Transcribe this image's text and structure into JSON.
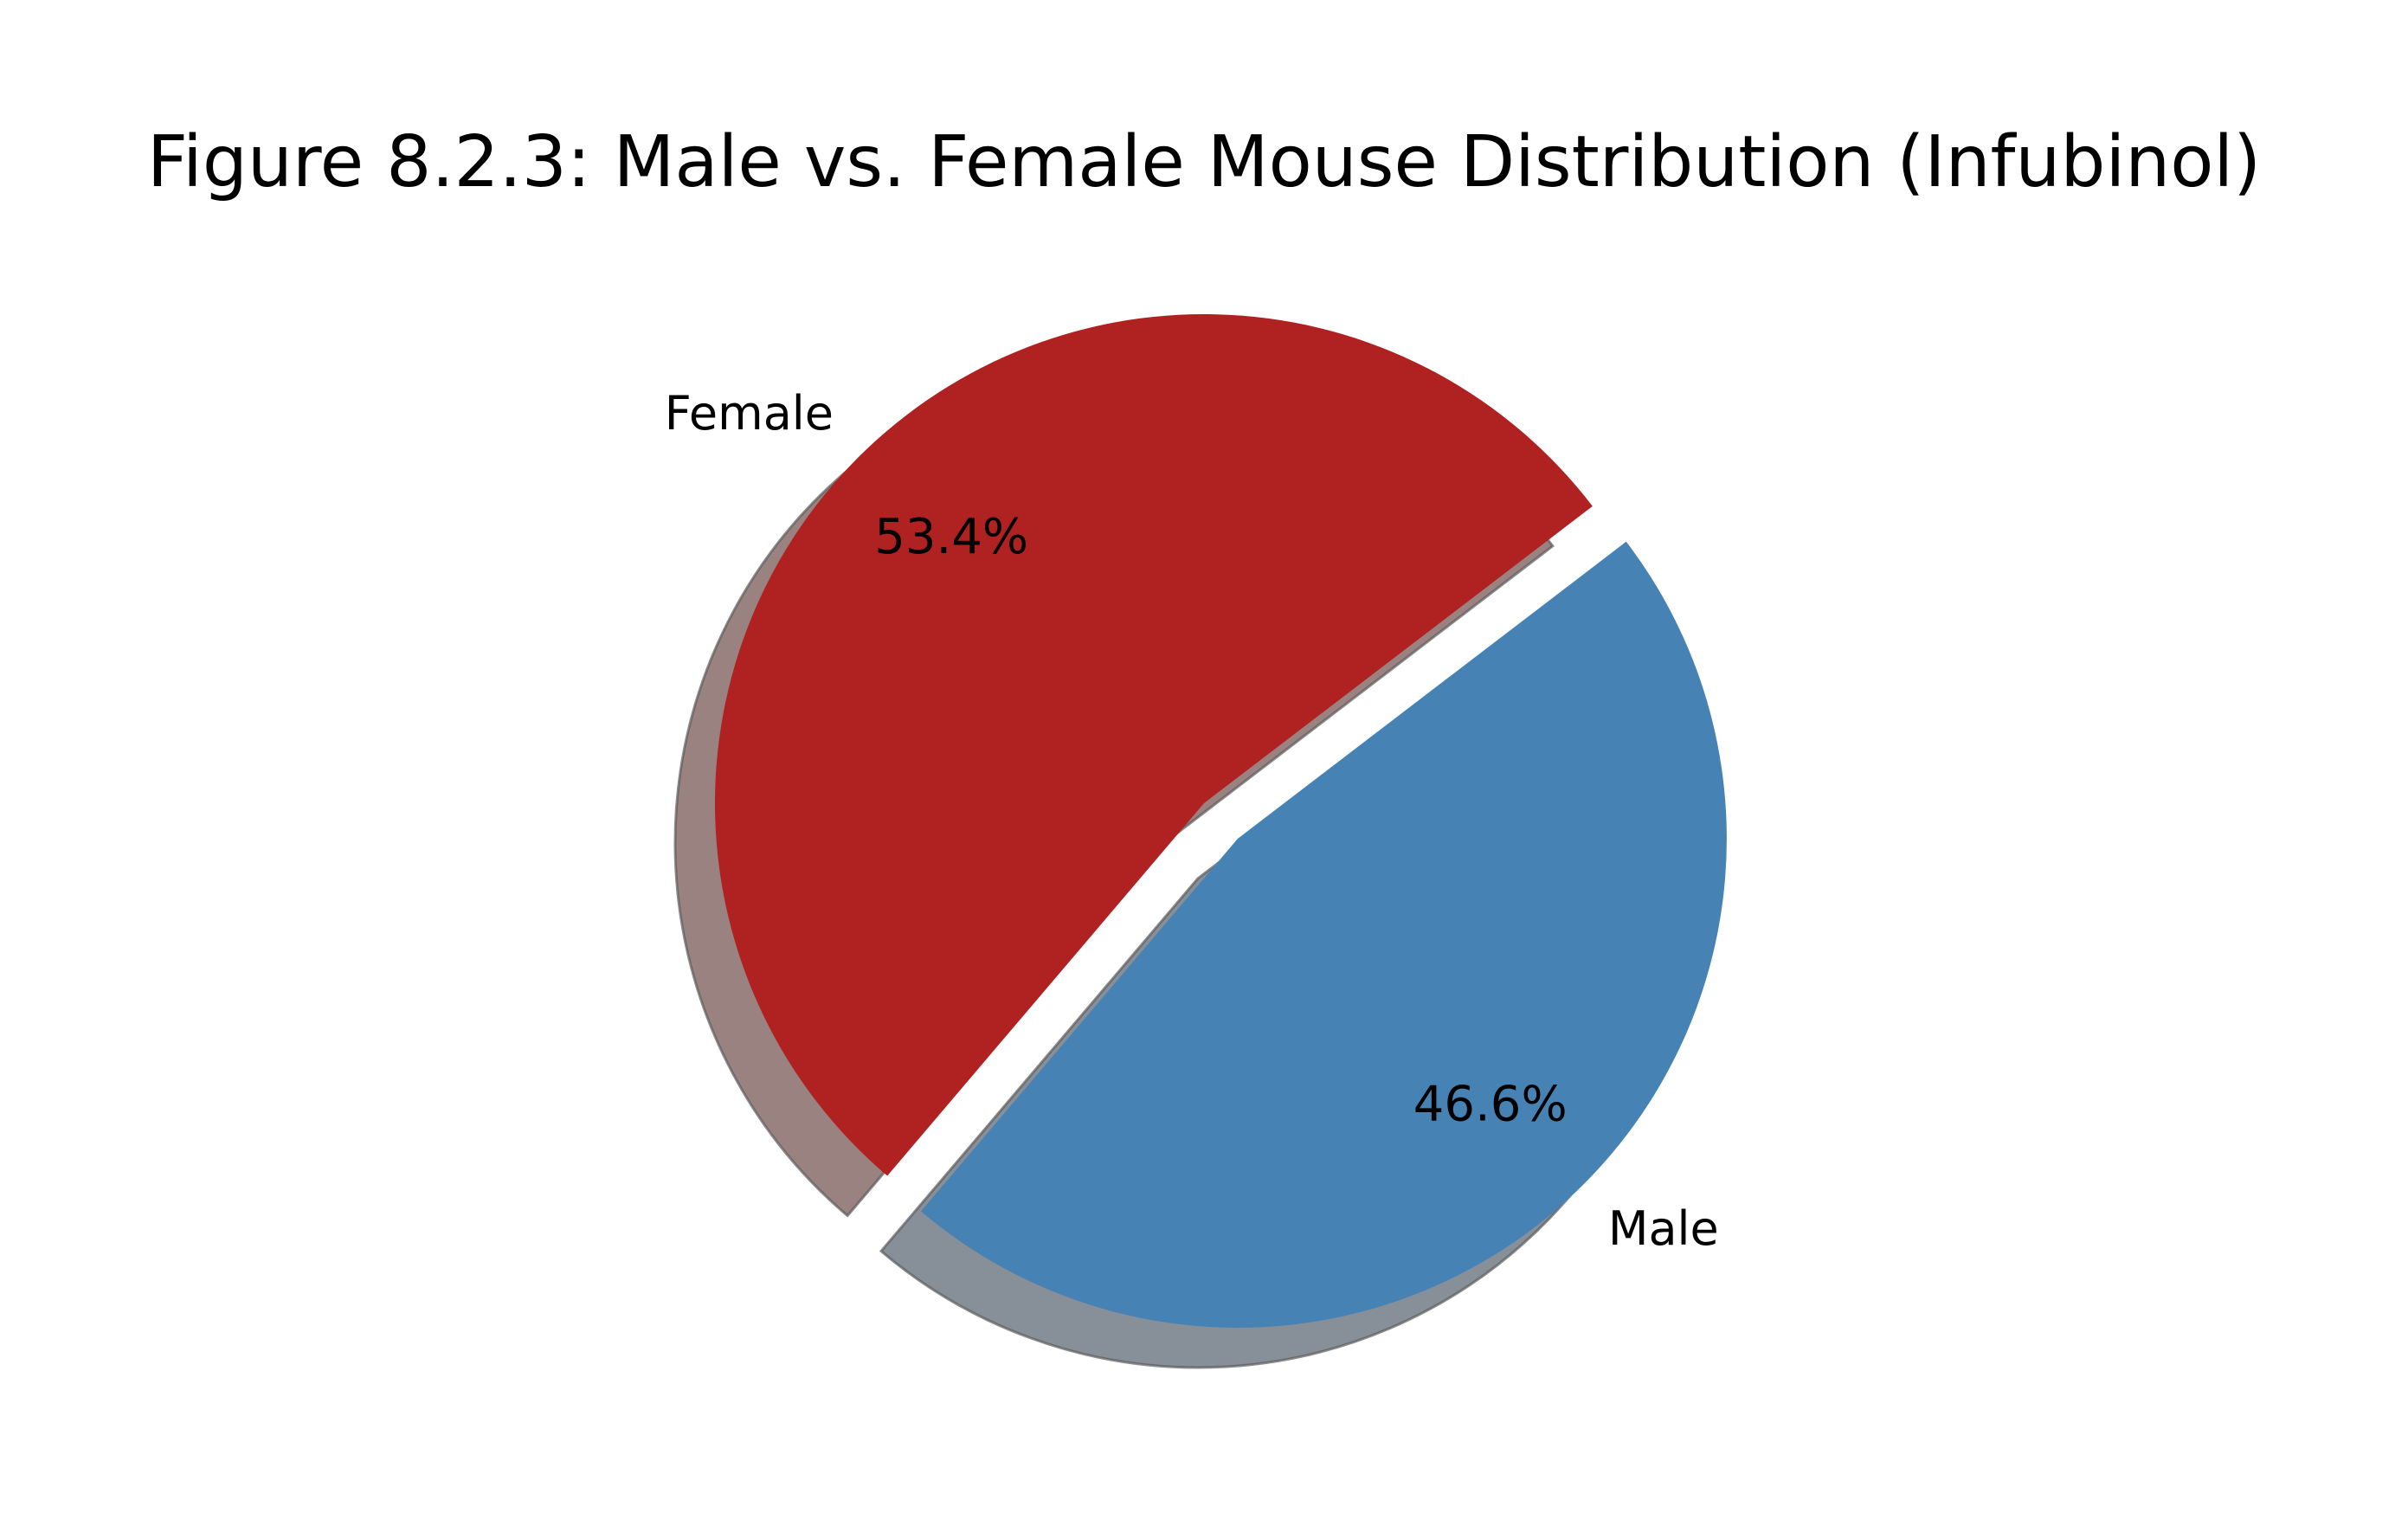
{
  "chart_data": {
    "type": "pie",
    "title": "Figure 8.2.3: Male vs. Female Mouse Distribution (Infubinol)",
    "slices": [
      {
        "label": "Female",
        "value": 53.4,
        "pct_label": "53.4%",
        "color": "#b02121",
        "shadow_color": "#9a8281",
        "exploded": false
      },
      {
        "label": "Male",
        "value": 46.6,
        "pct_label": "46.6%",
        "color": "#4682b4",
        "shadow_color": "#878f99",
        "exploded": true
      }
    ],
    "shadow": true,
    "legend": false
  }
}
